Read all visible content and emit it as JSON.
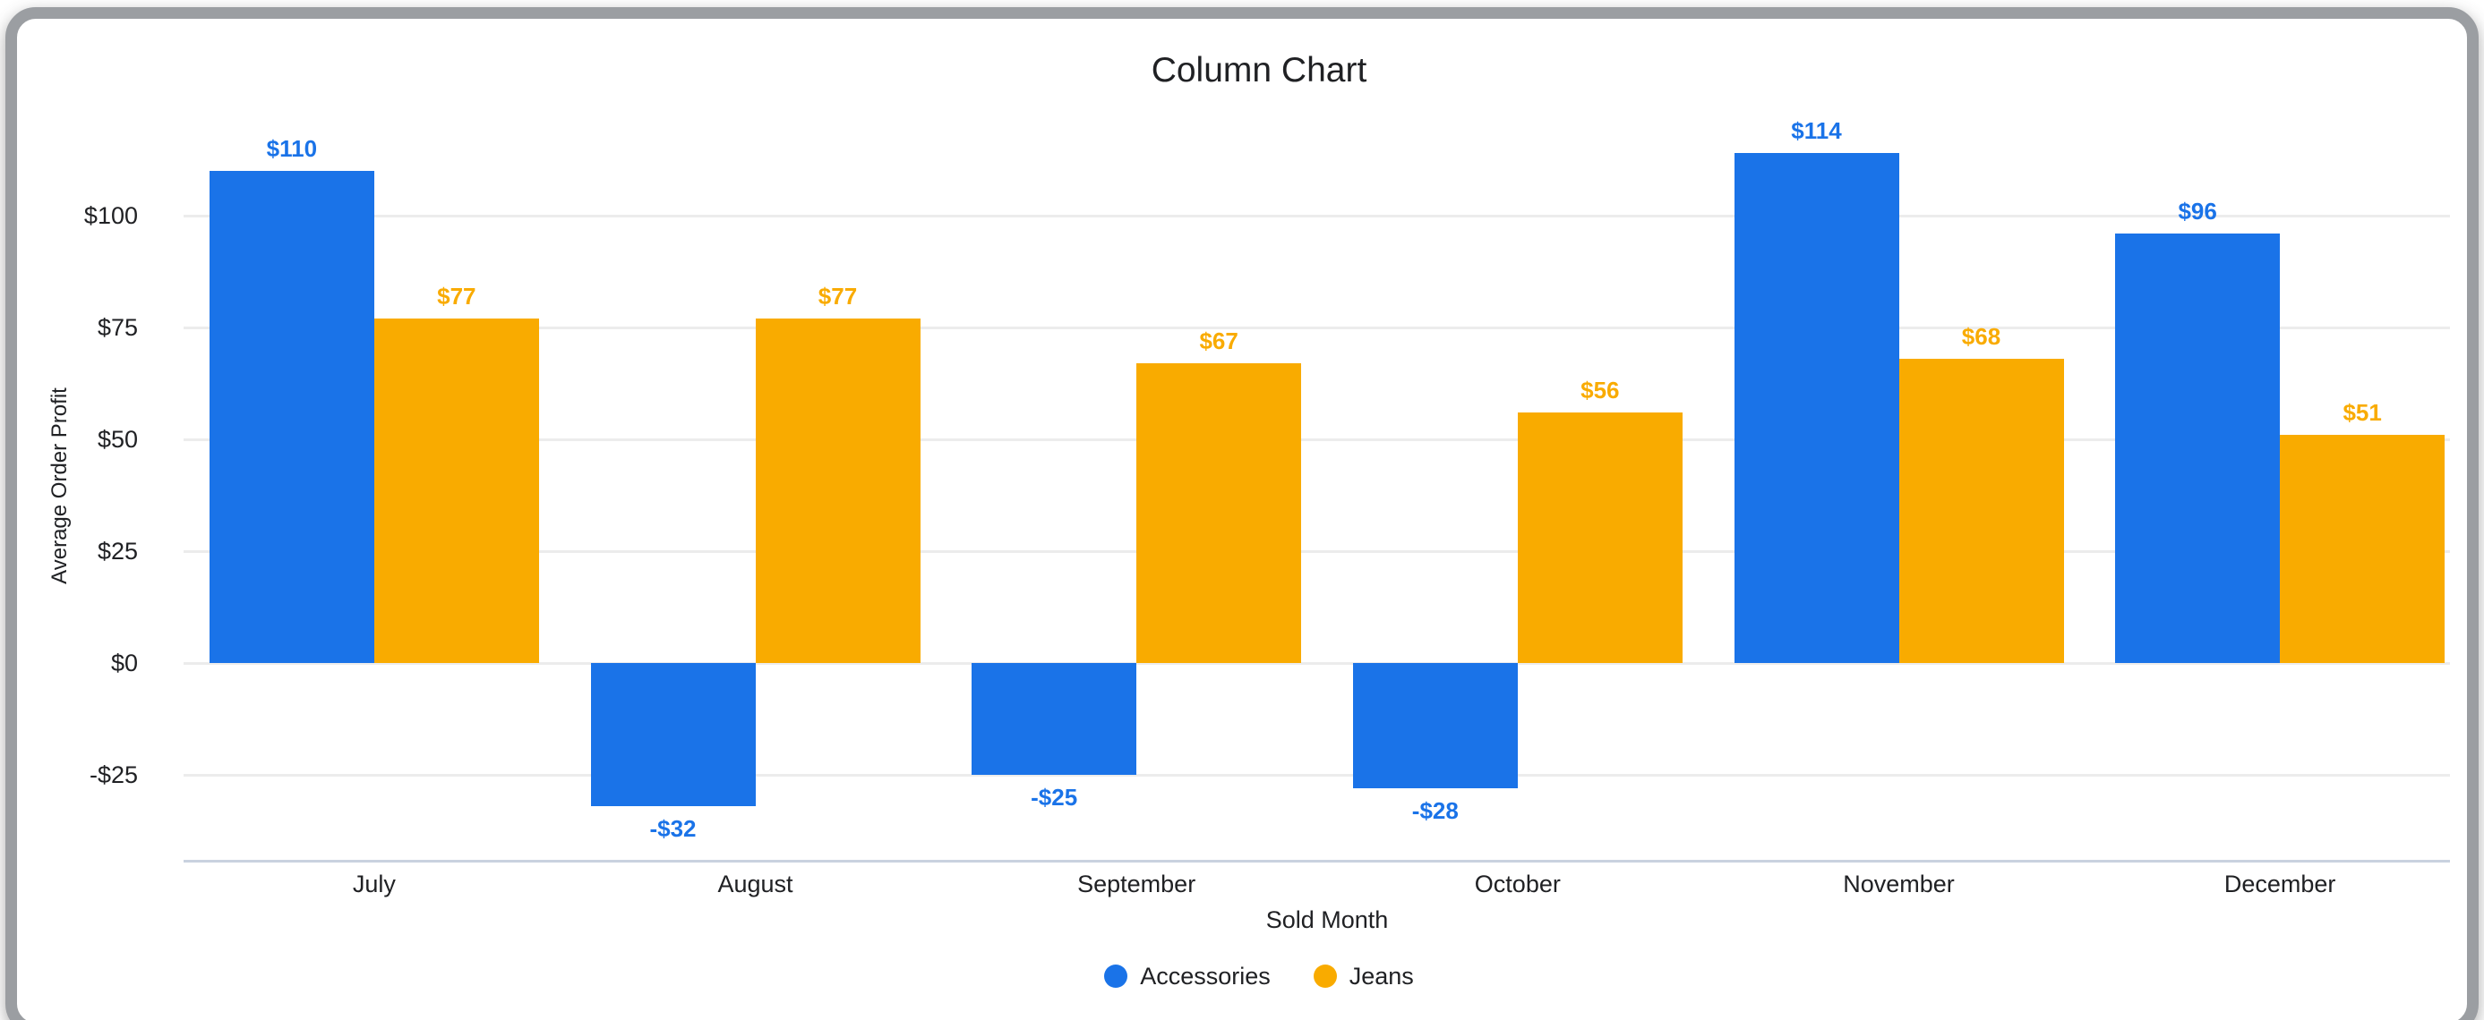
{
  "window": {
    "frame_color": "#9b9ea2",
    "background_color": "#ffffff"
  },
  "chart_data": {
    "type": "bar",
    "title": "Column Chart",
    "xlabel": "Sold Month",
    "ylabel": "Average Order Profit",
    "categories": [
      "July",
      "August",
      "September",
      "October",
      "November",
      "December"
    ],
    "series": [
      {
        "name": "Accessories",
        "color": "#1a73e8",
        "values": [
          110,
          -32,
          -25,
          -28,
          114,
          96
        ],
        "labels": [
          "$110",
          "-$32",
          "-$25",
          "-$28",
          "$114",
          "$96"
        ]
      },
      {
        "name": "Jeans",
        "color": "#f9ab00",
        "values": [
          77,
          77,
          67,
          56,
          68,
          51
        ],
        "labels": [
          "$77",
          "$77",
          "$67",
          "$56",
          "$68",
          "$51"
        ]
      }
    ],
    "y_axis": {
      "min": -44,
      "max": 123,
      "ticks": [
        {
          "value": 100,
          "label": "$100"
        },
        {
          "value": 75,
          "label": "$75"
        },
        {
          "value": 50,
          "label": "$50"
        },
        {
          "value": 25,
          "label": "$25"
        },
        {
          "value": 0,
          "label": "$0"
        },
        {
          "value": -25,
          "label": "-$25"
        }
      ]
    },
    "grid": true,
    "legend_position": "bottom",
    "gridline_color": "#ececec",
    "baseline_color": "#c9d2df"
  }
}
